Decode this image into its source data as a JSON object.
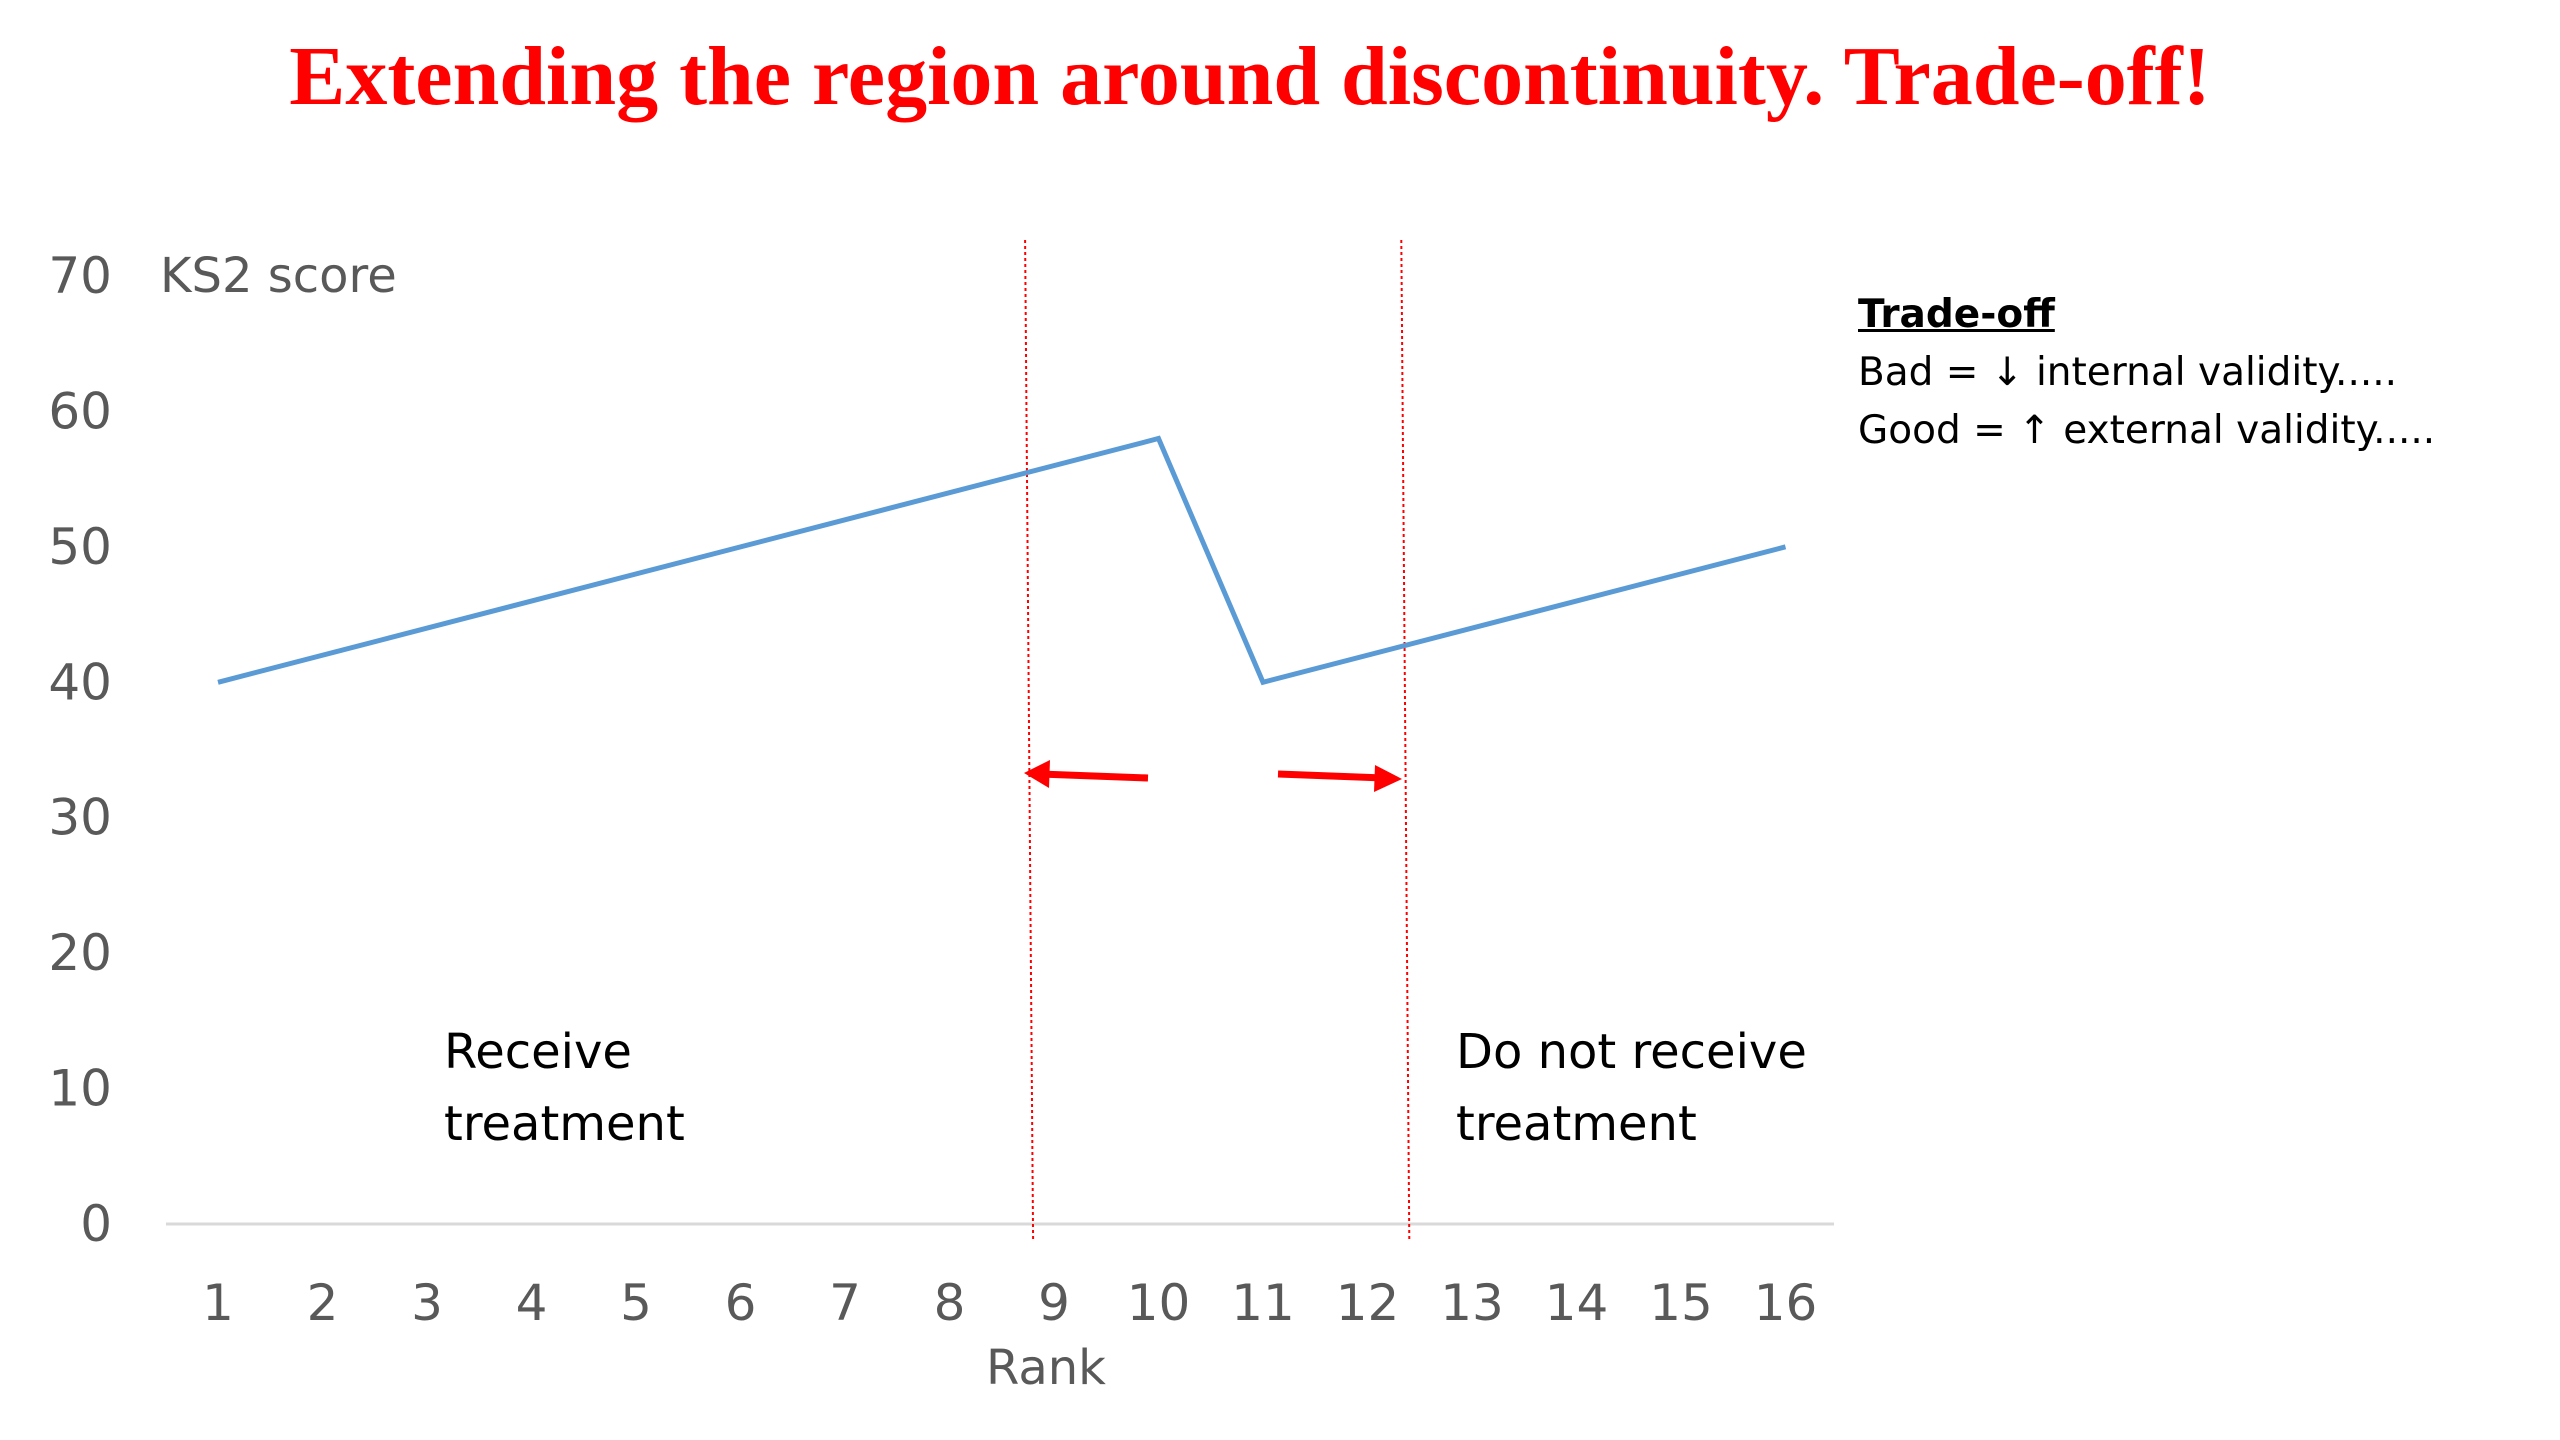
{
  "title": "Extending the region around discontinuity. Trade-off!",
  "chart_data": {
    "type": "line",
    "ylabel": "KS2 score",
    "xlabel": "Rank",
    "x": [
      1,
      2,
      3,
      4,
      5,
      6,
      7,
      8,
      9,
      10,
      11,
      12,
      13,
      14,
      15,
      16
    ],
    "ylim": [
      0,
      70
    ],
    "yticks": [
      0,
      10,
      20,
      30,
      40,
      50,
      60,
      70
    ],
    "grid": false,
    "series": [
      {
        "points": [
          [
            1,
            40
          ],
          [
            10,
            58
          ],
          [
            11,
            40
          ],
          [
            16,
            50
          ]
        ],
        "color": "#5b9bd5"
      }
    ],
    "cutoff_lines": [
      8.8,
      12.4
    ],
    "cutoff_color": "#ff0000",
    "region_labels": {
      "left": [
        "Receive",
        "treatment"
      ],
      "right": [
        "Do not receive",
        "treatment"
      ]
    }
  },
  "tradeoff": {
    "heading": "Trade-off",
    "line1": "Bad = ↓ internal validity.....",
    "line2": "Good = ↑ external validity....."
  },
  "colors": {
    "title": "#ff0000",
    "line": "#5b9bd5",
    "arrows": "#ff0000",
    "axis_text": "#595959"
  }
}
